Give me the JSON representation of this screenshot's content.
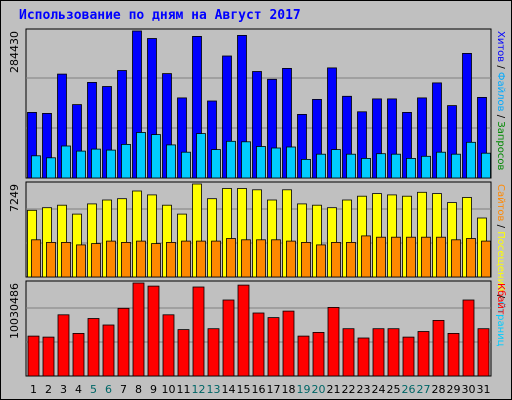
{
  "chart_title": "Использование по дням на Август 2017",
  "colors": {
    "background": "#c0c0c0",
    "plot_bg": "#c0c0c0",
    "grid": "#808080",
    "hits": "#0000ff",
    "files": "#00ccff",
    "pages": "#ffff00",
    "visits": "#ff8800",
    "kbytes": "#ff0000",
    "weekend_label": "#006666"
  },
  "chart_data": [
    {
      "type": "bar",
      "panel": "top",
      "ymax_label": "284430",
      "ylim": [
        0,
        284430
      ],
      "series": [
        {
          "name": "Хитов",
          "color": "#0000ff",
          "values": [
            127000,
            125000,
            201000,
            142000,
            185000,
            177000,
            208000,
            284430,
            270000,
            202000,
            155000,
            274000,
            149000,
            236000,
            276000,
            206000,
            191000,
            212000,
            123000,
            152000,
            213000,
            158000,
            128000,
            153000,
            153000,
            127000,
            155000,
            184000,
            140000,
            241000,
            156000
          ]
        },
        {
          "name": "Файлов",
          "color": "#00ccff",
          "values": [
            43000,
            39000,
            62000,
            52000,
            56000,
            54000,
            65000,
            88000,
            84000,
            64000,
            50000,
            86000,
            55000,
            71000,
            70000,
            61000,
            58000,
            60000,
            36000,
            46000,
            55000,
            46000,
            38000,
            47000,
            46000,
            38000,
            42000,
            50000,
            46000,
            69000,
            48000
          ]
        }
      ],
      "legend": [
        "Хитов",
        " / ",
        "Файлов",
        " / ",
        "Запросов"
      ]
    },
    {
      "type": "bar",
      "panel": "middle",
      "ymax_label": "7249",
      "ylim": [
        0,
        7249
      ],
      "series": [
        {
          "name": "Страниц",
          "color": "#ffff00",
          "values": [
            5200,
            5400,
            5600,
            4900,
            5700,
            6000,
            6100,
            6700,
            6400,
            5600,
            4900,
            7249,
            6100,
            6900,
            6900,
            6800,
            6000,
            6800,
            5700,
            5600,
            5400,
            6000,
            6300,
            6500,
            6400,
            6300,
            6600,
            6500,
            5800,
            6200,
            4600
          ]
        },
        {
          "name": "Посещений",
          "color": "#ff8800",
          "values": [
            2900,
            2700,
            2700,
            2500,
            2600,
            2800,
            2700,
            2800,
            2600,
            2700,
            2800,
            2800,
            2800,
            3000,
            2900,
            2900,
            2900,
            2800,
            2700,
            2500,
            2700,
            2700,
            3200,
            3100,
            3100,
            3100,
            3100,
            3100,
            2900,
            3000,
            2800
          ]
        }
      ],
      "legend": [
        "Сайтов",
        " / ",
        "Посещений",
        " / ",
        "Страниц"
      ]
    },
    {
      "type": "bar",
      "panel": "bottom",
      "ymax_label": "10030486",
      "ylim": [
        0,
        10030486
      ],
      "series": [
        {
          "name": "Кбайт",
          "color": "#ff0000",
          "values": [
            4300000,
            4200000,
            6600000,
            4600000,
            6200000,
            5500000,
            7300000,
            10030486,
            9700000,
            6600000,
            5000000,
            9600000,
            5100000,
            8200000,
            9800000,
            6800000,
            6300000,
            7000000,
            4300000,
            4700000,
            7400000,
            5100000,
            4100000,
            5100000,
            5100000,
            4200000,
            4800000,
            6000000,
            4600000,
            8200000,
            5100000
          ]
        }
      ],
      "legend": [
        "Кбайт"
      ]
    }
  ],
  "x_days": [
    "1",
    "2",
    "3",
    "4",
    "5",
    "6",
    "7",
    "8",
    "9",
    "10",
    "11",
    "12",
    "13",
    "14",
    "15",
    "16",
    "17",
    "18",
    "19",
    "20",
    "21",
    "22",
    "23",
    "24",
    "25",
    "26",
    "27",
    "28",
    "29",
    "30",
    "31"
  ],
  "weekend_days": [
    5,
    6,
    12,
    13,
    19,
    20,
    26,
    27
  ]
}
